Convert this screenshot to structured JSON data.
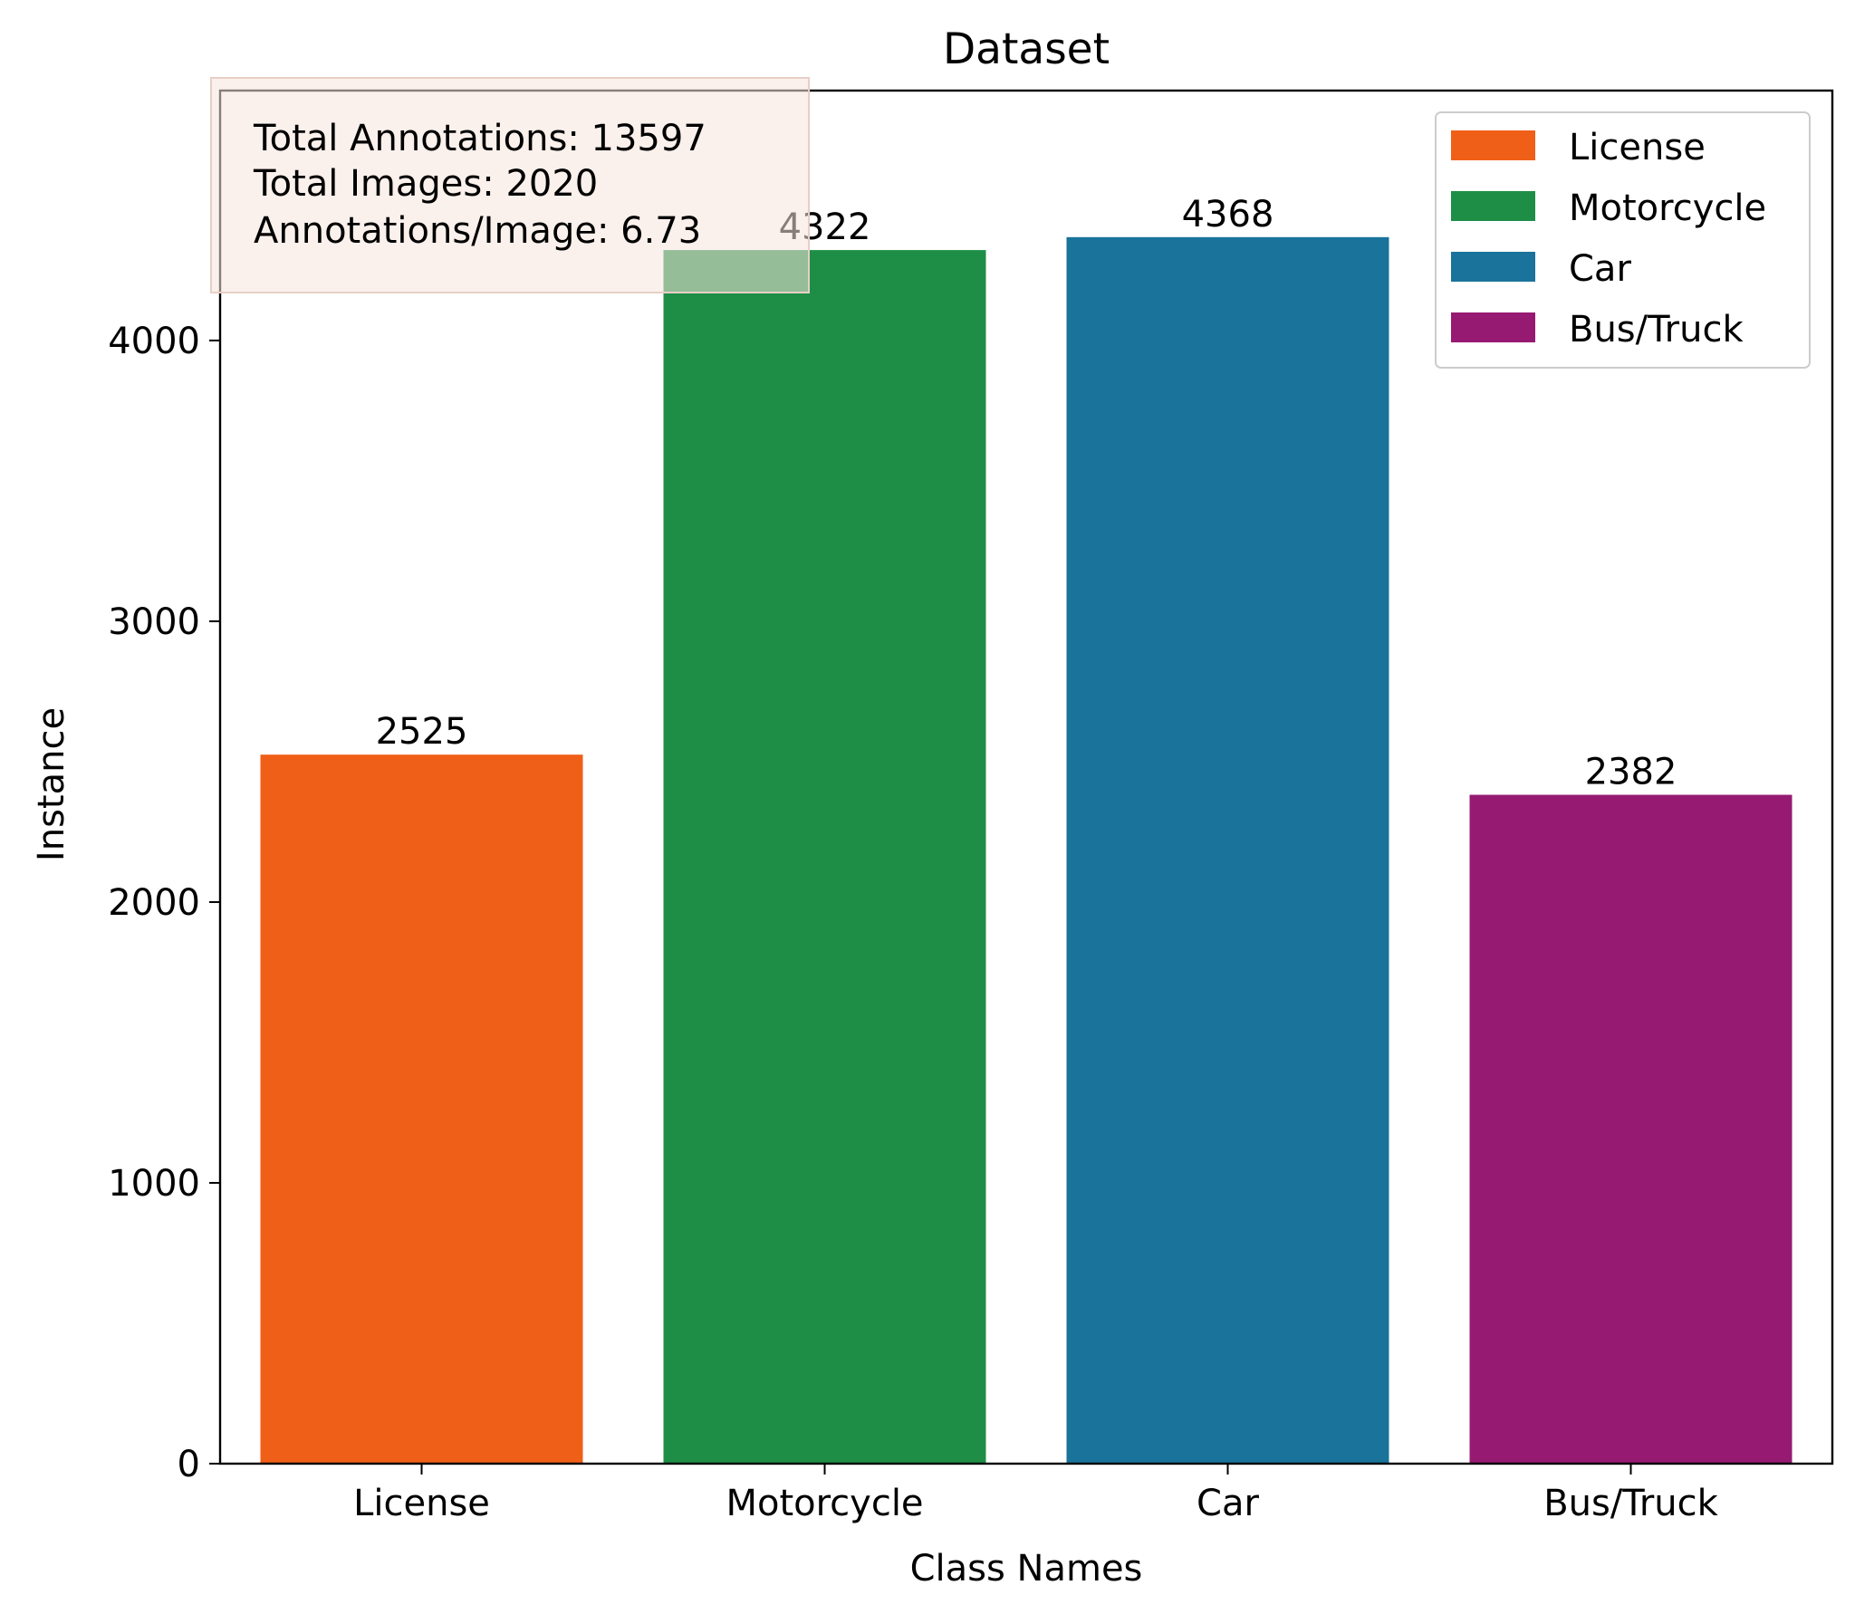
{
  "chart_data": {
    "type": "bar",
    "title": "Dataset",
    "xlabel": "Class Names",
    "ylabel": "Instance",
    "categories": [
      "License",
      "Motorcycle",
      "Car",
      "Bus/Truck"
    ],
    "values": [
      2525,
      4322,
      4368,
      2382
    ],
    "colors": [
      "#f05f17",
      "#1e8e46",
      "#1a739b",
      "#961a71"
    ],
    "ylim": [
      0,
      4890
    ],
    "yticks": [
      0,
      1000,
      2000,
      3000,
      4000
    ],
    "grid": false,
    "legend": {
      "placement": "upper right",
      "entries": [
        "License",
        "Motorcycle",
        "Car",
        "Bus/Truck"
      ]
    },
    "annotation": {
      "placement": "upper left",
      "lines": [
        "Total Annotations: 13597",
        "Total Images: 2020",
        "Annotations/Image: 6.73"
      ],
      "background": "#f5e3dc"
    }
  }
}
